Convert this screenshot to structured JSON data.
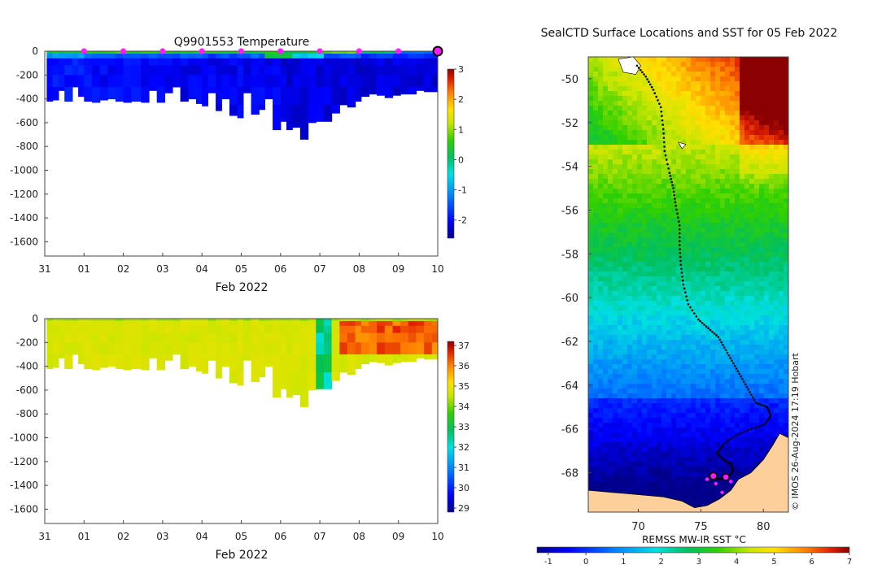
{
  "chart_data": [
    {
      "type": "heatmap",
      "title": "Q9901553  Temperature",
      "xlabel": "Feb 2022",
      "x_ticks": [
        "31",
        "01",
        "02",
        "03",
        "04",
        "05",
        "06",
        "07",
        "08",
        "09",
        "10"
      ],
      "x_range_days": [
        0,
        10
      ],
      "ylim": [
        -1720,
        0
      ],
      "y_ticks": [
        "0",
        "-200",
        "-400",
        "-600",
        "-800",
        "-1000",
        "-1200",
        "-1400",
        "-1600"
      ],
      "y_tick_values": [
        0,
        -200,
        -400,
        -600,
        -800,
        -1000,
        -1200,
        -1400,
        -1600
      ],
      "colorbar": {
        "min": -2.6,
        "max": 3,
        "ticks": [
          "3",
          "2",
          "1",
          "0",
          "-1",
          "-2"
        ],
        "tick_values": [
          3,
          2,
          1,
          0,
          -1,
          -2
        ],
        "colors": [
          "#00008b",
          "#0000ff",
          "#0080ff",
          "#00e0e0",
          "#00c060",
          "#30d000",
          "#c8e600",
          "#ffe000",
          "#ff8000",
          "#e02000",
          "#8b0000"
        ]
      },
      "profile_markers_day": [
        1,
        2,
        3,
        4,
        5,
        6,
        7,
        8,
        9
      ],
      "current_position_day": 10,
      "profile_max_depth": [
        [
          0.05,
          420
        ],
        [
          0.2,
          410
        ],
        [
          0.35,
          330
        ],
        [
          0.5,
          420
        ],
        [
          0.7,
          300
        ],
        [
          0.85,
          380
        ],
        [
          1.0,
          420
        ],
        [
          1.2,
          430
        ],
        [
          1.4,
          410
        ],
        [
          1.6,
          400
        ],
        [
          1.8,
          420
        ],
        [
          2.0,
          430
        ],
        [
          2.2,
          420
        ],
        [
          2.45,
          430
        ],
        [
          2.65,
          330
        ],
        [
          2.85,
          430
        ],
        [
          3.05,
          350
        ],
        [
          3.25,
          300
        ],
        [
          3.45,
          420
        ],
        [
          3.65,
          400
        ],
        [
          3.85,
          440
        ],
        [
          4.0,
          460
        ],
        [
          4.15,
          350
        ],
        [
          4.35,
          500
        ],
        [
          4.5,
          400
        ],
        [
          4.7,
          540
        ],
        [
          4.9,
          560
        ],
        [
          5.05,
          350
        ],
        [
          5.25,
          530
        ],
        [
          5.45,
          490
        ],
        [
          5.6,
          400
        ],
        [
          5.8,
          660
        ],
        [
          6.0,
          590
        ],
        [
          6.15,
          660
        ],
        [
          6.3,
          640
        ],
        [
          6.5,
          740
        ],
        [
          6.7,
          600
        ],
        [
          6.9,
          590
        ],
        [
          7.1,
          590
        ],
        [
          7.3,
          520
        ],
        [
          7.5,
          450
        ],
        [
          7.7,
          470
        ],
        [
          7.9,
          420
        ],
        [
          8.05,
          380
        ],
        [
          8.25,
          360
        ],
        [
          8.45,
          370
        ],
        [
          8.65,
          390
        ],
        [
          8.85,
          370
        ],
        [
          9.05,
          360
        ],
        [
          9.25,
          360
        ],
        [
          9.45,
          330
        ],
        [
          9.65,
          340
        ],
        [
          9.85,
          340
        ],
        [
          10.0,
          350
        ]
      ],
      "values_by_depth": {
        "0-20m": [
          0.3,
          0.6,
          0.5,
          0.4,
          0.5,
          0.4,
          0.2,
          0.8,
          0.1,
          -1.2,
          -1.6
        ],
        "20-100m": [
          -1.0,
          -1.4,
          -1.5,
          -1.5,
          -1.6,
          -1.4,
          -0.6,
          -1.5,
          -1.7,
          -1.8,
          -1.8
        ],
        "100-deep": [
          -1.9,
          -2.0,
          -2.0,
          -2.1,
          -2.1,
          -2.1,
          -2.2,
          -2.2,
          -2.2,
          -2.2,
          -2.2
        ]
      }
    },
    {
      "type": "heatmap",
      "title": "",
      "xlabel": "Feb 2022",
      "x_ticks": [
        "31",
        "01",
        "02",
        "03",
        "04",
        "05",
        "06",
        "07",
        "08",
        "09",
        "10"
      ],
      "x_range_days": [
        0,
        10
      ],
      "ylim": [
        -1720,
        0
      ],
      "y_ticks": [
        "0",
        "-200",
        "-400",
        "-600",
        "-800",
        "-1000",
        "-1200",
        "-1400",
        "-1600"
      ],
      "y_tick_values": [
        0,
        -200,
        -400,
        -600,
        -800,
        -1000,
        -1200,
        -1400,
        -1600
      ],
      "colorbar": {
        "min": 28.8,
        "max": 37.2,
        "ticks": [
          "37",
          "36",
          "35",
          "34",
          "33",
          "32",
          "31",
          "30",
          "29"
        ],
        "tick_values": [
          37,
          36,
          35,
          34,
          33,
          32,
          31,
          30,
          29
        ],
        "colors": [
          "#00008b",
          "#0000ff",
          "#0080ff",
          "#00e0e0",
          "#00c060",
          "#30d000",
          "#c8e600",
          "#ffe000",
          "#ff8000",
          "#e02000",
          "#8b0000"
        ]
      },
      "surface_value": 34.2,
      "deep_value": 34.7,
      "anomaly_band_days": [
        6.8,
        7.15
      ],
      "anomaly_band_value": 32.5,
      "high_salinity_days": [
        7.4,
        10.0
      ],
      "high_salinity_value": 35.8
    },
    {
      "type": "map",
      "title": "SealCTD Surface Locations and SST for 05 Feb 2022",
      "colorbar_label": "REMSS MW-IR SST °C",
      "lon_range": [
        66,
        82
      ],
      "lat_range": [
        -69.8,
        -49
      ],
      "lon_ticks": [
        "70",
        "75",
        "80"
      ],
      "lon_tick_values": [
        70,
        75,
        80
      ],
      "lat_ticks": [
        "-50",
        "-52",
        "-54",
        "-56",
        "-58",
        "-60",
        "-62",
        "-64",
        "-66",
        "-68"
      ],
      "lat_tick_values": [
        -50,
        -52,
        -54,
        -56,
        -58,
        -60,
        -62,
        -64,
        -66,
        -68
      ],
      "sst_colorbar": {
        "min": -1.3,
        "max": 7,
        "ticks": [
          "-1",
          "0",
          "1",
          "2",
          "3",
          "4",
          "5",
          "6",
          "7"
        ],
        "tick_values": [
          -1,
          0,
          1,
          2,
          3,
          4,
          5,
          6,
          7
        ]
      },
      "track": [
        [
          69.9,
          -49.4
        ],
        [
          70.6,
          -49.9
        ],
        [
          71.2,
          -50.5
        ],
        [
          71.8,
          -51.3
        ],
        [
          72.0,
          -52.3
        ],
        [
          72.1,
          -53.3
        ],
        [
          72.5,
          -54.3
        ],
        [
          72.8,
          -55.0
        ],
        [
          73.0,
          -55.8
        ],
        [
          73.3,
          -56.7
        ],
        [
          73.3,
          -57.6
        ],
        [
          73.4,
          -58.5
        ],
        [
          73.6,
          -59.4
        ],
        [
          74.0,
          -60.3
        ],
        [
          74.8,
          -61.0
        ],
        [
          75.6,
          -61.4
        ],
        [
          76.4,
          -61.8
        ],
        [
          77.0,
          -62.4
        ],
        [
          77.6,
          -63.0
        ],
        [
          78.2,
          -63.6
        ],
        [
          78.8,
          -64.2
        ],
        [
          79.4,
          -64.8
        ],
        [
          80.3,
          -65.0
        ],
        [
          80.6,
          -65.4
        ],
        [
          80.1,
          -65.8
        ],
        [
          79.0,
          -66.0
        ],
        [
          77.8,
          -66.3
        ],
        [
          76.8,
          -66.7
        ],
        [
          76.3,
          -67.1
        ],
        [
          76.8,
          -67.4
        ],
        [
          77.4,
          -67.6
        ],
        [
          77.6,
          -67.9
        ],
        [
          77.2,
          -68.2
        ],
        [
          76.5,
          -68.3
        ],
        [
          76.0,
          -68.15
        ]
      ],
      "surface_locations": [
        [
          75.9,
          -68.15
        ],
        [
          77.0,
          -68.2
        ],
        [
          76.2,
          -68.5
        ],
        [
          77.4,
          -68.4
        ],
        [
          75.5,
          -68.3
        ],
        [
          76.7,
          -68.9
        ]
      ],
      "current_location": [
        76.0,
        -68.15
      ],
      "credit": "© IMOS 26-Aug-2024 17:19 Hobart"
    }
  ]
}
